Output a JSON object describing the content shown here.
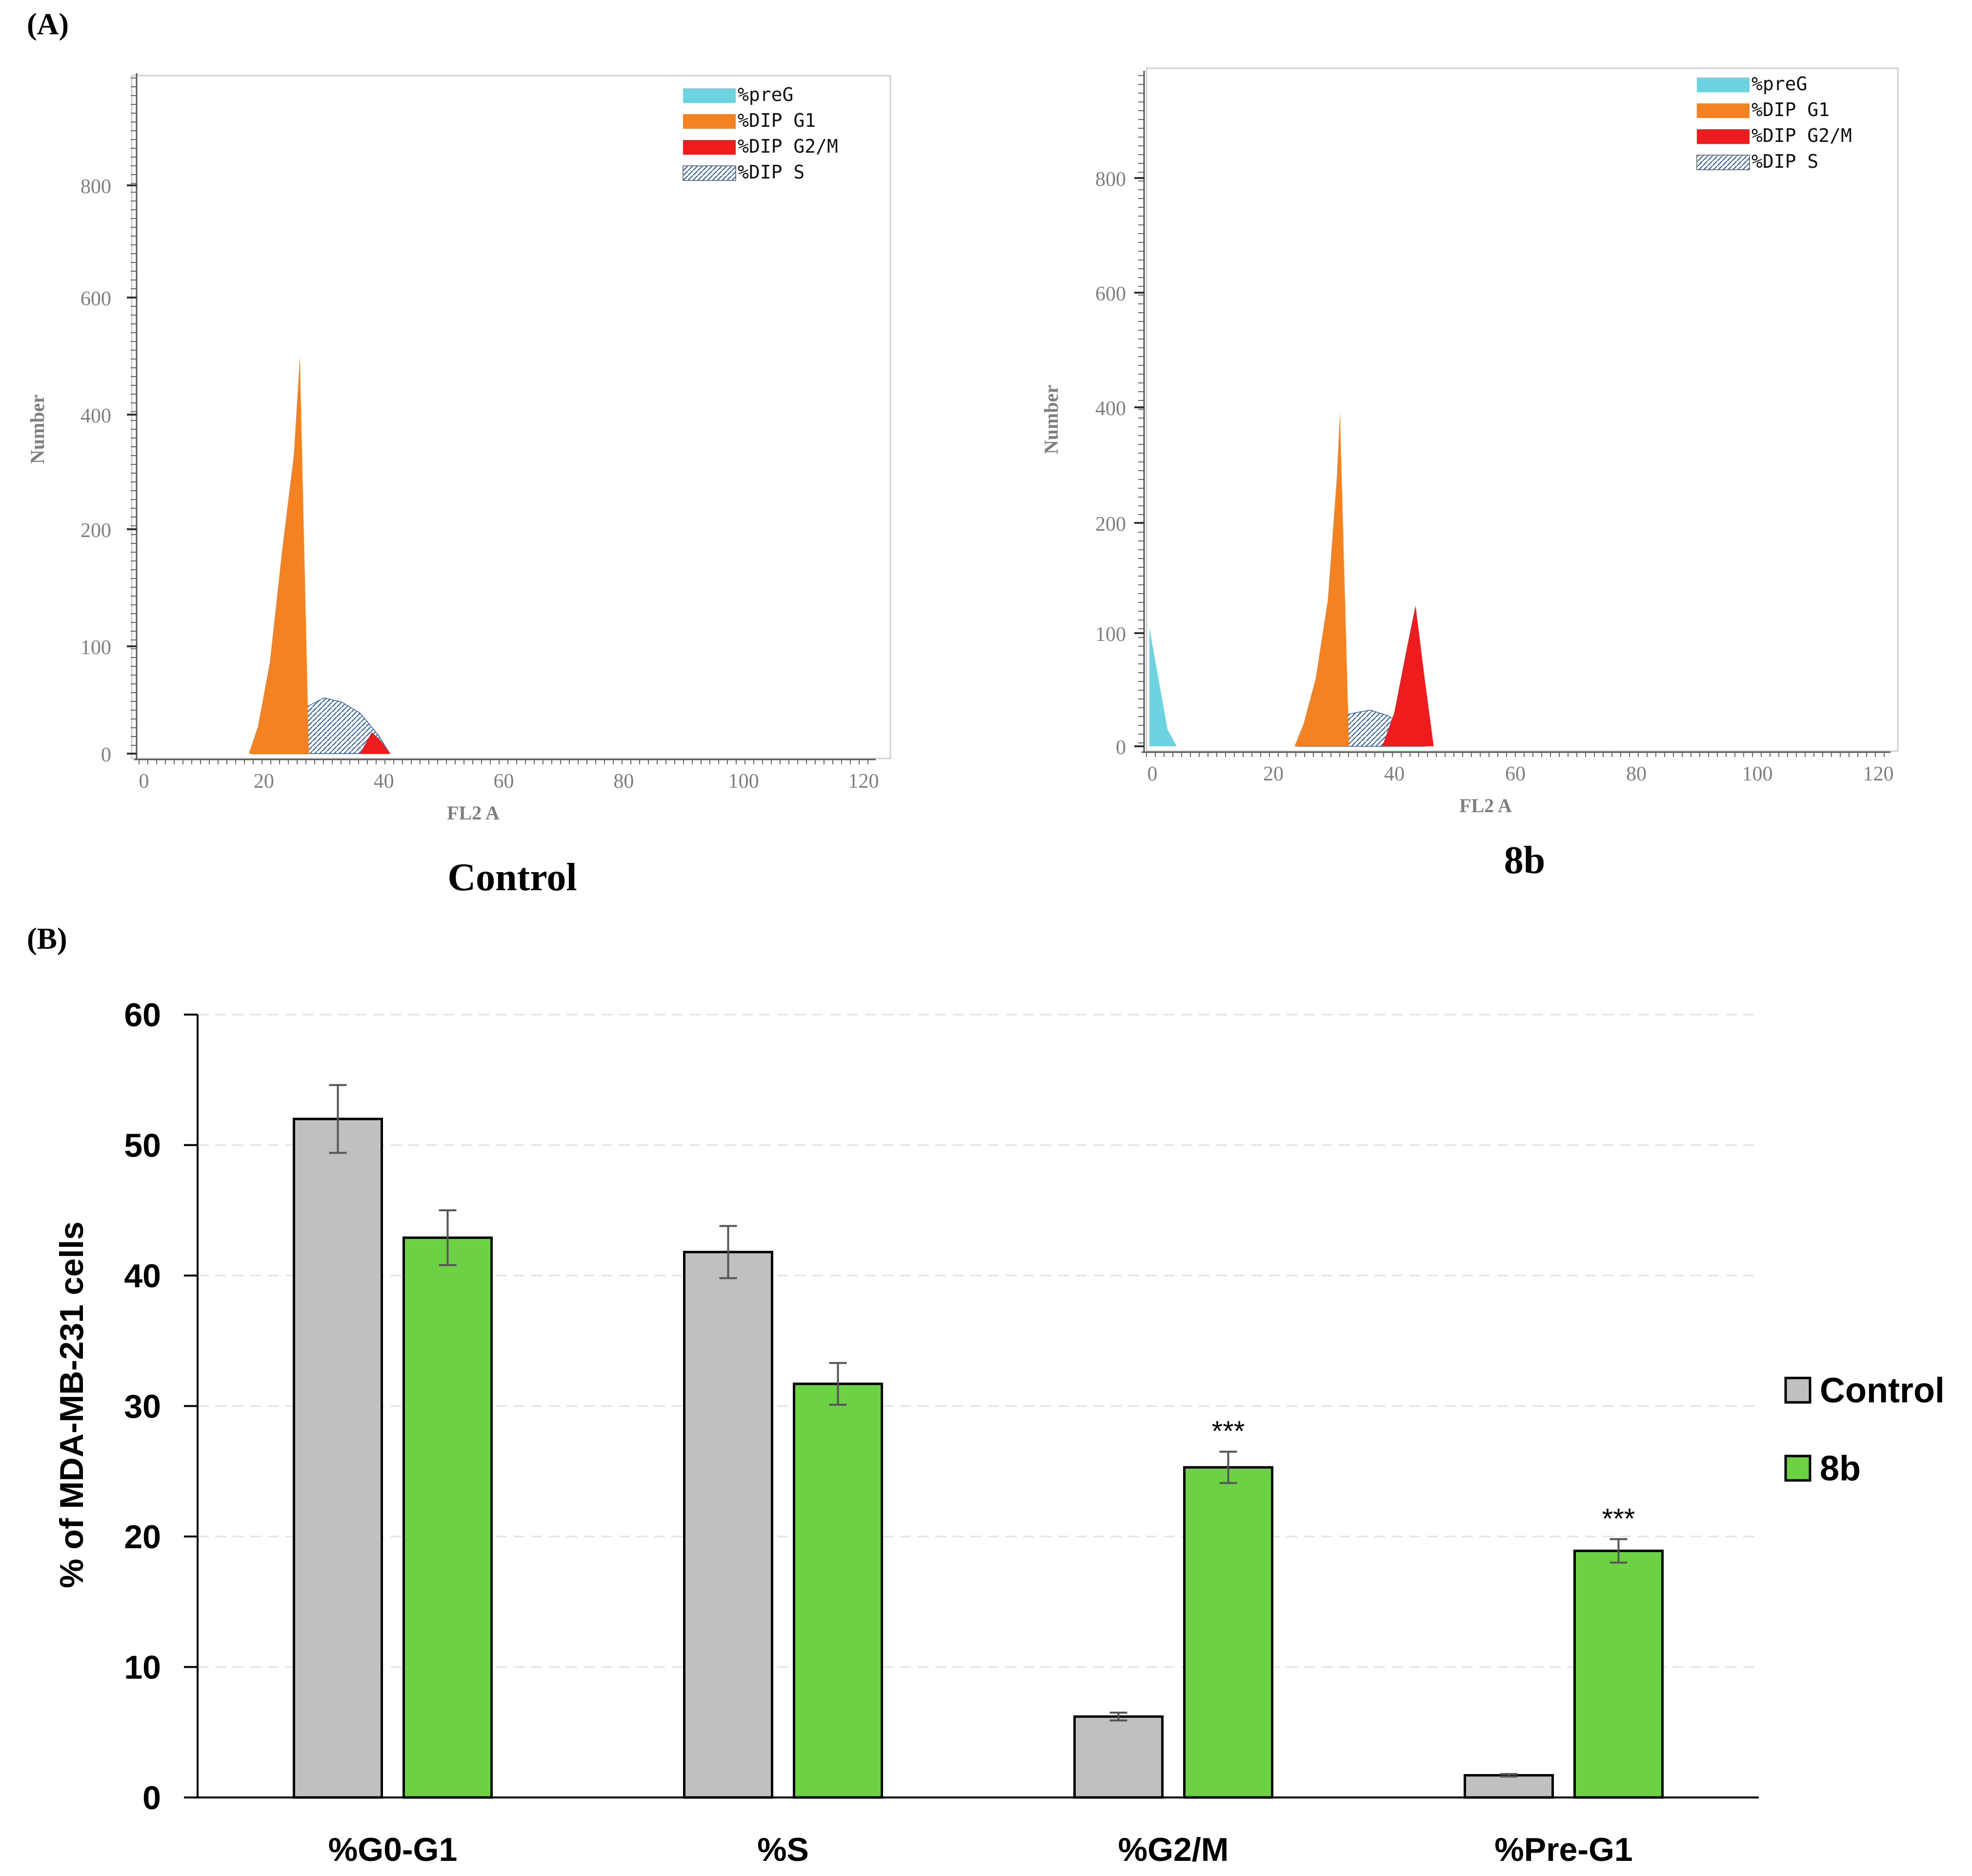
{
  "figure": {
    "panel_a_label": "(A)",
    "panel_b_label": "(B)"
  },
  "colors": {
    "preG": "#6ed3e0",
    "G1": "#f58220",
    "G2M": "#ee1c1c",
    "S_stroke": "#2f5aa0",
    "control_bar": "#c0c0c0",
    "treated_bar": "#6dd144",
    "hist_axis_text": "#7f7f7f"
  },
  "chart_data": [
    {
      "type": "area",
      "id": "hist-control",
      "caption": "Control",
      "xlabel": "FL2 A",
      "ylabel": "Number",
      "x_ticks": [
        "0",
        "20",
        "40",
        "60",
        "80",
        "100",
        "120"
      ],
      "x_tick_values": [
        0,
        20,
        40,
        60,
        80,
        100,
        120
      ],
      "y_ticks": [
        "0",
        "100",
        "200",
        "400",
        "600",
        "800"
      ],
      "xlim": [
        0,
        125
      ],
      "legend": [
        "%preG",
        "%DIP G1",
        "%DIP G2/M",
        "%DIP S"
      ],
      "series": [
        {
          "name": "%DIP G1",
          "peak_x": 26,
          "peak_y": 500,
          "x": [
            17.5,
            19,
            21,
            23,
            25,
            26,
            27.5
          ],
          "y": [
            0,
            25,
            85,
            180,
            330,
            500,
            0
          ]
        },
        {
          "name": "%DIP S",
          "x": [
            18,
            22,
            26,
            30,
            33,
            36,
            39,
            41
          ],
          "y": [
            0,
            20,
            40,
            52,
            48,
            38,
            18,
            0
          ]
        },
        {
          "name": "%DIP G2/M",
          "x": [
            36,
            38,
            39.5,
            41
          ],
          "y": [
            0,
            20,
            12,
            0
          ]
        }
      ]
    },
    {
      "type": "area",
      "id": "hist-8b",
      "caption": "8b",
      "xlabel": "FL2 A",
      "ylabel": "Number",
      "x_ticks": [
        "0",
        "20",
        "40",
        "60",
        "80",
        "100",
        "120"
      ],
      "x_tick_values": [
        0,
        20,
        40,
        60,
        80,
        100,
        120
      ],
      "y_ticks": [
        "0",
        "100",
        "200",
        "400",
        "600",
        "800"
      ],
      "xlim": [
        -1,
        124
      ],
      "legend": [
        "%preG",
        "%DIP G1",
        "%DIP G2/M",
        "%DIP S"
      ],
      "series": [
        {
          "name": "%preG",
          "x": [
            -0.5,
            -0.5,
            1,
            2.5,
            4
          ],
          "y": [
            0,
            105,
            60,
            15,
            0
          ]
        },
        {
          "name": "%DIP G1",
          "peak_x": 31,
          "peak_y": 390,
          "x": [
            23.5,
            25,
            27,
            29,
            30.5,
            31,
            32.5
          ],
          "y": [
            0,
            20,
            60,
            130,
            280,
            390,
            0
          ]
        },
        {
          "name": "%DIP S",
          "x": [
            24,
            28,
            32,
            36,
            39,
            42,
            45
          ],
          "y": [
            0,
            15,
            28,
            32,
            27,
            15,
            0
          ]
        },
        {
          "name": "%DIP G2/M",
          "peak_x": 43.5,
          "peak_y": 125,
          "x": [
            38,
            40,
            42,
            43.5,
            45,
            46.5
          ],
          "y": [
            0,
            30,
            85,
            125,
            60,
            0
          ]
        }
      ]
    },
    {
      "type": "bar",
      "id": "bar-cell-cycle",
      "categories": [
        "%G0-G1",
        "%S",
        "%G2/M",
        "%Pre-G1"
      ],
      "ylabel": "% of MDA-MB-231 cells",
      "xlabel": "",
      "ylim": [
        0,
        60
      ],
      "y_ticks": [
        "0",
        "10",
        "20",
        "30",
        "40",
        "50",
        "60"
      ],
      "y_tick_values": [
        0,
        10,
        20,
        30,
        40,
        50,
        60
      ],
      "grid": true,
      "legend_position": "right",
      "series": [
        {
          "name": "Control",
          "values": [
            52,
            41.8,
            6.2,
            1.7
          ],
          "errors": [
            2.6,
            2.0,
            0.3,
            0.1
          ]
        },
        {
          "name": "8b",
          "values": [
            42.9,
            31.7,
            25.3,
            18.9
          ],
          "errors": [
            2.1,
            1.6,
            1.2,
            0.9
          ]
        }
      ],
      "annotations": [
        "",
        "",
        "***",
        "***"
      ]
    }
  ]
}
